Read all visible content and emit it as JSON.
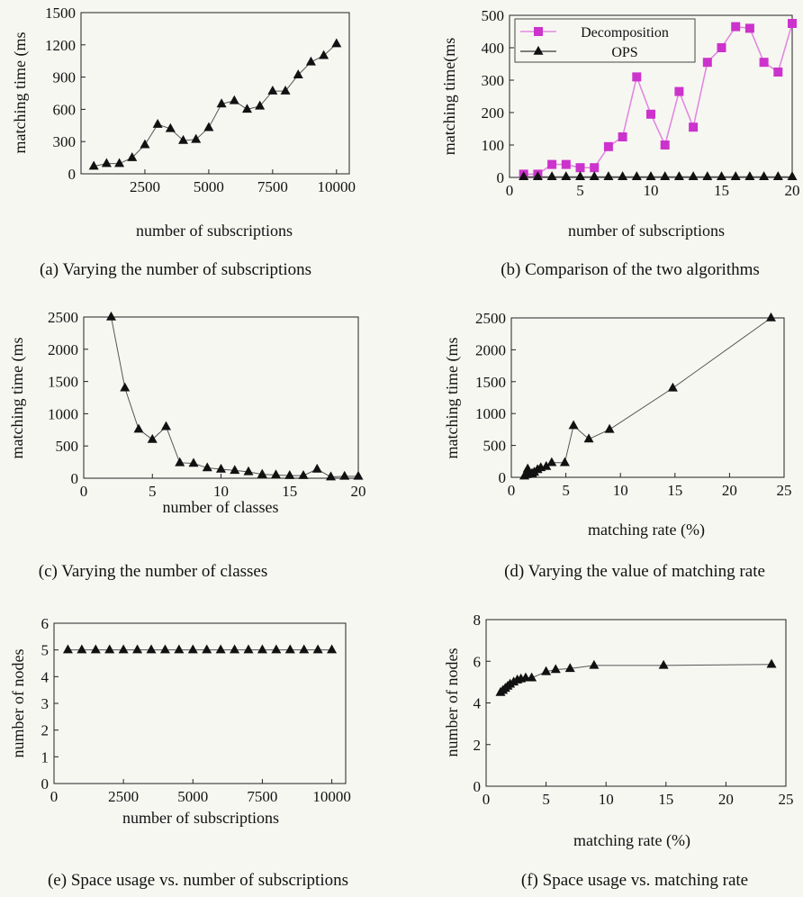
{
  "chart_data": [
    {
      "id": "a",
      "type": "line",
      "caption": "(a) Varying the number of subscriptions",
      "xlabel": "number of subscriptions",
      "ylabel": "matching time (ms",
      "xlim": [
        0,
        10500
      ],
      "ylim": [
        0,
        1500
      ],
      "xticks": [
        2500,
        5000,
        7500,
        10000
      ],
      "yticks": [
        0,
        300,
        600,
        900,
        1200,
        1500
      ],
      "legend": "none",
      "series": [
        {
          "marker": "triangle",
          "color": "#111111",
          "x": [
            500,
            1000,
            1500,
            2000,
            2500,
            3000,
            3500,
            4000,
            4500,
            5000,
            5500,
            6000,
            6500,
            7000,
            7500,
            8000,
            8500,
            9000,
            9500,
            10000
          ],
          "y": [
            70,
            95,
            95,
            150,
            270,
            460,
            420,
            310,
            320,
            430,
            650,
            680,
            600,
            630,
            770,
            770,
            920,
            1040,
            1100,
            1210
          ]
        }
      ]
    },
    {
      "id": "b",
      "type": "line",
      "caption": "(b) Comparison of the two algorithms",
      "xlabel": "number of subscriptions",
      "ylabel": "matching time(ms",
      "xlim": [
        0,
        20
      ],
      "ylim": [
        0,
        500
      ],
      "xticks": [
        0,
        5,
        10,
        15,
        20
      ],
      "yticks": [
        0,
        100,
        200,
        300,
        400,
        500
      ],
      "legend": "top-left",
      "series": [
        {
          "name": "Decomposition",
          "marker": "square",
          "color": "#cc33cc",
          "x": [
            1,
            2,
            3,
            4,
            5,
            6,
            7,
            8,
            9,
            10,
            11,
            12,
            13,
            14,
            15,
            16,
            17,
            18,
            19,
            20
          ],
          "y": [
            10,
            10,
            40,
            40,
            30,
            30,
            95,
            125,
            310,
            195,
            100,
            265,
            155,
            355,
            400,
            465,
            460,
            355,
            325,
            475
          ]
        },
        {
          "name": "OPS",
          "marker": "triangle",
          "color": "#111111",
          "x": [
            1,
            2,
            3,
            4,
            5,
            6,
            7,
            8,
            9,
            10,
            11,
            12,
            13,
            14,
            15,
            16,
            17,
            18,
            19,
            20
          ],
          "y": [
            2,
            2,
            2,
            2,
            2,
            2,
            2,
            2,
            2,
            2,
            2,
            2,
            2,
            2,
            2,
            2,
            2,
            2,
            2,
            2
          ]
        }
      ]
    },
    {
      "id": "c",
      "type": "line",
      "caption": "(c) Varying the number of classes",
      "xlabel": "number of classes",
      "ylabel": "matching time (ms",
      "xlim": [
        0,
        20
      ],
      "ylim": [
        0,
        2500
      ],
      "xticks": [
        0,
        5,
        10,
        15,
        20
      ],
      "yticks": [
        0,
        500,
        1000,
        1500,
        2000,
        2500
      ],
      "legend": "none",
      "series": [
        {
          "marker": "triangle",
          "color": "#111111",
          "x": [
            2,
            3,
            4,
            5,
            6,
            7,
            8,
            9,
            10,
            11,
            12,
            13,
            14,
            15,
            16,
            17,
            18,
            19,
            20
          ],
          "y": [
            2500,
            1400,
            760,
            600,
            800,
            240,
            230,
            160,
            140,
            120,
            100,
            60,
            50,
            40,
            40,
            140,
            20,
            30,
            30
          ]
        }
      ]
    },
    {
      "id": "d",
      "type": "line",
      "caption": "(d) Varying the value of matching rate",
      "xlabel": "matching rate (%)",
      "ylabel": "matching time (ms",
      "xlim": [
        0,
        25
      ],
      "ylim": [
        0,
        2500
      ],
      "xticks": [
        0,
        5,
        10,
        15,
        20,
        25
      ],
      "yticks": [
        0,
        500,
        1000,
        1500,
        2000,
        2500
      ],
      "legend": "none",
      "series": [
        {
          "marker": "triangle",
          "color": "#111111",
          "x": [
            1.2,
            1.4,
            1.5,
            1.7,
            1.9,
            2.1,
            2.4,
            2.7,
            3.2,
            3.7,
            4.9,
            5.7,
            7.1,
            9.0,
            14.8,
            23.8
          ],
          "y": [
            20,
            40,
            130,
            50,
            60,
            80,
            120,
            150,
            170,
            230,
            230,
            810,
            600,
            750,
            1400,
            2500
          ]
        }
      ]
    },
    {
      "id": "e",
      "type": "line",
      "caption": "(e) Space usage vs. number of subscriptions",
      "xlabel": "number of subscriptions",
      "ylabel": "number of nodes",
      "xlim": [
        0,
        10500
      ],
      "ylim": [
        0,
        6
      ],
      "xticks": [
        0,
        2500,
        5000,
        7500,
        10000
      ],
      "yticks": [
        0,
        1,
        2,
        3,
        4,
        5,
        6
      ],
      "legend": "none",
      "series": [
        {
          "marker": "triangle",
          "color": "#111111",
          "x": [
            500,
            1000,
            1500,
            2000,
            2500,
            3000,
            3500,
            4000,
            4500,
            5000,
            5500,
            6000,
            6500,
            7000,
            7500,
            8000,
            8500,
            9000,
            9500,
            10000
          ],
          "y": [
            5,
            5,
            5,
            5,
            5,
            5,
            5,
            5,
            5,
            5,
            5,
            5,
            5,
            5,
            5,
            5,
            5,
            5,
            5,
            5
          ]
        }
      ]
    },
    {
      "id": "f",
      "type": "line",
      "caption": "(f) Space usage vs. matching rate",
      "xlabel": "matching rate (%)",
      "ylabel": "number of nodes",
      "xlim": [
        0,
        25
      ],
      "ylim": [
        0,
        8
      ],
      "xticks": [
        0,
        5,
        10,
        15,
        20,
        25
      ],
      "yticks": [
        0,
        2,
        4,
        6,
        8
      ],
      "legend": "none",
      "series": [
        {
          "marker": "triangle",
          "color": "#111111",
          "x": [
            1.2,
            1.4,
            1.6,
            1.8,
            2.0,
            2.3,
            2.6,
            2.9,
            3.3,
            3.8,
            5.0,
            5.8,
            7.0,
            9.0,
            14.8,
            23.8
          ],
          "y": [
            4.5,
            4.6,
            4.7,
            4.8,
            4.9,
            5.0,
            5.1,
            5.15,
            5.2,
            5.2,
            5.5,
            5.6,
            5.65,
            5.8,
            5.8,
            5.85
          ]
        }
      ]
    }
  ]
}
